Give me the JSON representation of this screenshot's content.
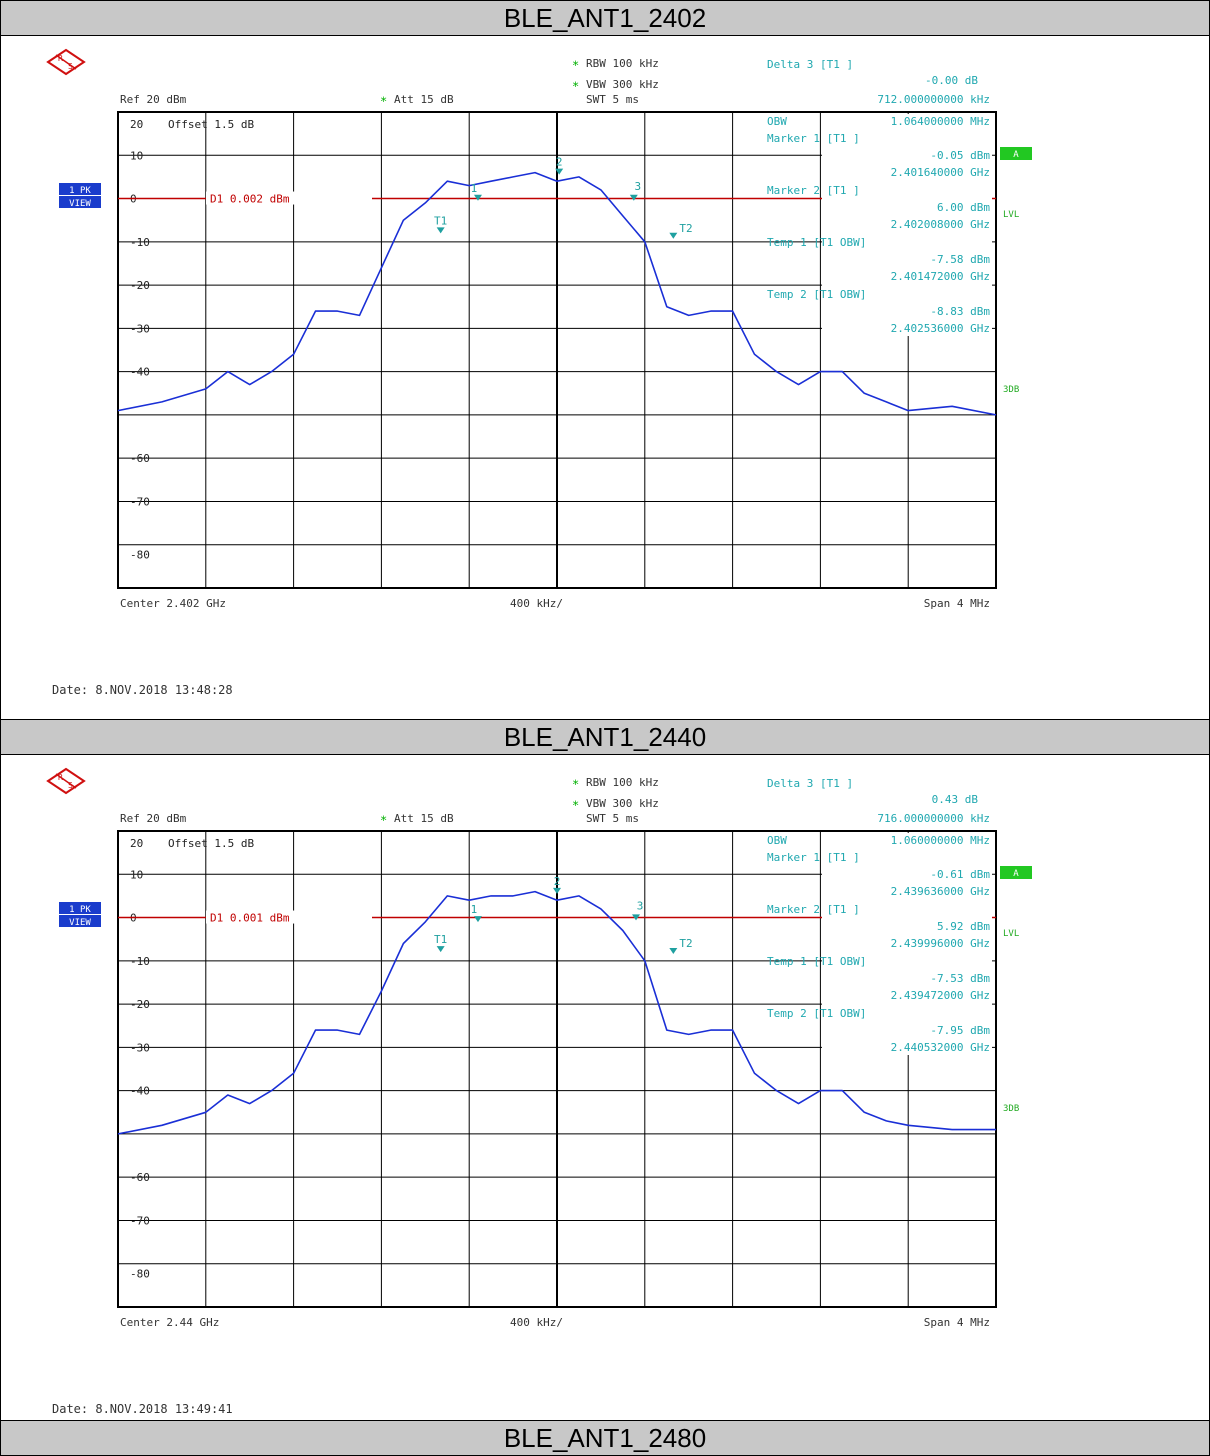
{
  "panels": [
    {
      "title": "BLE_ANT1_2402",
      "settings": {
        "ref": "Ref   20 dBm",
        "att": "Att   15 dB",
        "rbw": "RBW  100  kHz",
        "vbw": "VBW  300  kHz",
        "swt": "SWT  5  ms"
      },
      "offset": "Offset    1.5  dB",
      "trace_label_1": "1 PK",
      "trace_label_2": "VIEW",
      "side_a": "A",
      "side_lvl": "LVL",
      "side_3db": "3DB",
      "d1_label": "D1   0.002 dBm",
      "markers_info": [
        {
          "label": "Delta 3 [T1 ]",
          "value": "-0.00 dB",
          "value2": "712.000000000 kHz"
        },
        {
          "label": "OBW",
          "value": "1.064000000 MHz"
        },
        {
          "label": "Marker 1 [T1 ]",
          "value": "-0.05 dBm",
          "value2": "2.401640000 GHz"
        },
        {
          "label": "Marker 2 [T1 ]",
          "value": "6.00 dBm",
          "value2": "2.402008000 GHz"
        },
        {
          "label": "Temp 1 [T1 OBW]",
          "value": "-7.58 dBm",
          "value2": "2.401472000 GHz"
        },
        {
          "label": "Temp 2 [T1 OBW]",
          "value": "-8.83 dBm",
          "value2": "2.402536000 GHz"
        }
      ],
      "footer": {
        "center": "Center  2.402 GHz",
        "div": "400 kHz/",
        "span": "Span  4 MHz"
      },
      "date": "Date: 8.NOV.2018  13:48:28",
      "chart_data": {
        "type": "line",
        "center_ghz": 2.402,
        "xlim_mhz": [
          -2,
          2
        ],
        "ylim": [
          -90,
          10
        ],
        "ylabel_ticks": [
          "20",
          "10",
          "0",
          "-10",
          "-20",
          "-30",
          "-40",
          "",
          "-60",
          "-70",
          "-80"
        ],
        "ref_line_dbm": 0.002,
        "series": [
          {
            "x": [
              -2.0,
              -1.8,
              -1.6,
              -1.5,
              -1.4,
              -1.3,
              -1.2,
              -1.1,
              -1.0,
              -0.9,
              -0.8,
              -0.7,
              -0.6,
              -0.5,
              -0.4,
              -0.3,
              -0.2,
              -0.1,
              0.0,
              0.1,
              0.2,
              0.3,
              0.4,
              0.5,
              0.6,
              0.7,
              0.8,
              0.9,
              1.0,
              1.1,
              1.2,
              1.3,
              1.4,
              1.5,
              1.6,
              1.8,
              2.0
            ],
            "y": [
              -49,
              -47,
              -44,
              -40,
              -43,
              -40,
              -36,
              -26,
              -26,
              -27,
              -16,
              -5,
              -1,
              4,
              3,
              4,
              5,
              6,
              4,
              5,
              2,
              -4,
              -10,
              -25,
              -27,
              -26,
              -26,
              -36,
              -40,
              -43,
              -40,
              -40,
              -45,
              -47,
              -49,
              -48,
              -50
            ]
          }
        ],
        "markers": [
          {
            "label": "T1",
            "x": -0.53,
            "y": -7.58
          },
          {
            "label": "1",
            "x": -0.36,
            "y": -0.05
          },
          {
            "label": "2",
            "x": 0.01,
            "y": 6.0
          },
          {
            "label": "3",
            "x": 0.35,
            "y": -0.05
          },
          {
            "label": "T2",
            "x": 0.53,
            "y": -8.83
          }
        ]
      }
    },
    {
      "title": "BLE_ANT1_2440",
      "settings": {
        "ref": "Ref   20 dBm",
        "att": "Att   15 dB",
        "rbw": "RBW  100  kHz",
        "vbw": "VBW  300  kHz",
        "swt": "SWT  5  ms"
      },
      "offset": "Offset    1.5  dB",
      "trace_label_1": "1 PK",
      "trace_label_2": "VIEW",
      "side_a": "A",
      "side_lvl": "LVL",
      "side_3db": "3DB",
      "d1_label": "D1   0.001 dBm",
      "markers_info": [
        {
          "label": "Delta 3 [T1 ]",
          "value": "0.43 dB",
          "value2": "716.000000000 kHz"
        },
        {
          "label": "OBW",
          "value": "1.060000000 MHz"
        },
        {
          "label": "Marker 1 [T1 ]",
          "value": "-0.61 dBm",
          "value2": "2.439636000 GHz"
        },
        {
          "label": "Marker 2 [T1 ]",
          "value": "5.92 dBm",
          "value2": "2.439996000 GHz"
        },
        {
          "label": "Temp 1 [T1 OBW]",
          "value": "-7.53 dBm",
          "value2": "2.439472000 GHz"
        },
        {
          "label": "Temp 2 [T1 OBW]",
          "value": "-7.95 dBm",
          "value2": "2.440532000 GHz"
        }
      ],
      "footer": {
        "center": "Center  2.44 GHz",
        "div": "400 kHz/",
        "span": "Span  4 MHz"
      },
      "date": "Date: 8.NOV.2018  13:49:41",
      "chart_data": {
        "type": "line",
        "center_ghz": 2.44,
        "xlim_mhz": [
          -2,
          2
        ],
        "ylim": [
          -90,
          10
        ],
        "ylabel_ticks": [
          "20",
          "10",
          "0",
          "-10",
          "-20",
          "-30",
          "-40",
          "",
          "-60",
          "-70",
          "-80"
        ],
        "ref_line_dbm": 0.001,
        "series": [
          {
            "x": [
              -2.0,
              -1.8,
              -1.6,
              -1.5,
              -1.4,
              -1.3,
              -1.2,
              -1.1,
              -1.0,
              -0.9,
              -0.8,
              -0.7,
              -0.6,
              -0.5,
              -0.4,
              -0.3,
              -0.2,
              -0.1,
              0.0,
              0.1,
              0.2,
              0.3,
              0.4,
              0.5,
              0.6,
              0.7,
              0.8,
              0.9,
              1.0,
              1.1,
              1.2,
              1.3,
              1.4,
              1.5,
              1.6,
              1.8,
              2.0
            ],
            "y": [
              -50,
              -48,
              -45,
              -41,
              -43,
              -40,
              -36,
              -26,
              -26,
              -27,
              -17,
              -6,
              -1,
              5,
              4,
              5,
              5,
              6,
              4,
              5,
              2,
              -3,
              -10,
              -26,
              -27,
              -26,
              -26,
              -36,
              -40,
              -43,
              -40,
              -40,
              -45,
              -47,
              -48,
              -49,
              -49
            ]
          }
        ],
        "markers": [
          {
            "label": "T1",
            "x": -0.53,
            "y": -7.53
          },
          {
            "label": "1",
            "x": -0.36,
            "y": -0.61
          },
          {
            "label": "2",
            "x": 0.0,
            "y": 5.92
          },
          {
            "label": "3",
            "x": 0.36,
            "y": -0.2
          },
          {
            "label": "T2",
            "x": 0.53,
            "y": -7.95
          }
        ]
      }
    }
  ],
  "bottom_title": "BLE_ANT1_2480"
}
